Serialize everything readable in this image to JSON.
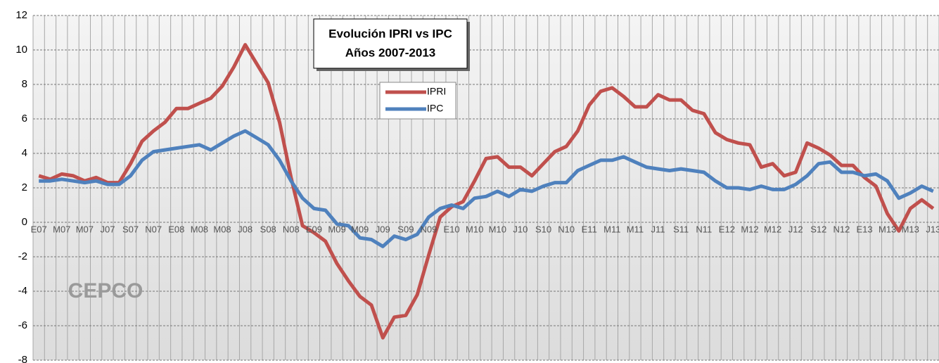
{
  "chart_data": {
    "type": "line",
    "title": "Evolución IPRI vs IPC",
    "subtitle": "Años 2007-2013",
    "logo": "CEPCO",
    "categories": [
      "E07",
      null,
      "M07",
      null,
      "M07",
      null,
      "J07",
      null,
      "S07",
      null,
      "N07",
      null,
      "E08",
      null,
      "M08",
      null,
      "M08",
      null,
      "J08",
      null,
      "S08",
      null,
      "N08",
      null,
      "E09",
      null,
      "M09",
      null,
      "M09",
      null,
      "J09",
      null,
      "S09",
      null,
      "N09",
      null,
      "E10",
      null,
      "M10",
      null,
      "M10",
      null,
      "J10",
      null,
      "S10",
      null,
      "N10",
      null,
      "E11",
      null,
      "M11",
      null,
      "M11",
      null,
      "J11",
      null,
      "S11",
      null,
      "N11",
      null,
      "E12",
      null,
      "M12",
      null,
      "M12",
      null,
      "J12",
      null,
      "S12",
      null,
      "N12",
      null,
      "E13",
      null,
      "M13",
      null,
      "M13",
      null,
      "J13"
    ],
    "series": [
      {
        "name": "IPRI",
        "color": "#c0504d",
        "values": [
          2.7,
          2.5,
          2.8,
          2.7,
          2.4,
          2.6,
          2.3,
          2.3,
          3.4,
          4.7,
          5.3,
          5.8,
          6.6,
          6.6,
          6.9,
          7.2,
          7.9,
          9.0,
          10.3,
          9.2,
          8.1,
          5.8,
          2.6,
          -0.2,
          -0.6,
          -1.1,
          -2.4,
          -3.4,
          -4.3,
          -4.8,
          -6.7,
          -5.5,
          -5.4,
          -4.2,
          -1.9,
          0.3,
          0.9,
          1.2,
          2.4,
          3.7,
          3.8,
          3.2,
          3.2,
          2.7,
          3.4,
          4.1,
          4.4,
          5.3,
          6.8,
          7.6,
          7.8,
          7.3,
          6.7,
          6.7,
          7.4,
          7.1,
          7.1,
          6.5,
          6.3,
          5.2,
          4.8,
          4.6,
          4.5,
          3.2,
          3.4,
          2.7,
          2.9,
          4.6,
          4.3,
          3.9,
          3.3,
          3.3,
          2.6,
          2.1,
          0.5,
          -0.5,
          0.8,
          1.3,
          0.8
        ]
      },
      {
        "name": "IPC",
        "color": "#4f81bd",
        "values": [
          2.4,
          2.4,
          2.5,
          2.4,
          2.3,
          2.4,
          2.2,
          2.2,
          2.7,
          3.6,
          4.1,
          4.2,
          4.3,
          4.4,
          4.5,
          4.2,
          4.6,
          5.0,
          5.3,
          4.9,
          4.5,
          3.6,
          2.4,
          1.4,
          0.8,
          0.7,
          -0.1,
          -0.2,
          -0.9,
          -1.0,
          -1.4,
          -0.8,
          -1.0,
          -0.7,
          0.3,
          0.8,
          1.0,
          0.8,
          1.4,
          1.5,
          1.8,
          1.5,
          1.9,
          1.8,
          2.1,
          2.3,
          2.3,
          3.0,
          3.3,
          3.6,
          3.6,
          3.8,
          3.5,
          3.2,
          3.1,
          3.0,
          3.1,
          3.0,
          2.9,
          2.4,
          2.0,
          2.0,
          1.9,
          2.1,
          1.9,
          1.9,
          2.2,
          2.7,
          3.4,
          3.5,
          2.9,
          2.9,
          2.7,
          2.8,
          2.4,
          1.4,
          1.7,
          2.1,
          1.8
        ]
      }
    ],
    "ylim": [
      -8,
      12
    ],
    "yticks": [
      -8,
      -6,
      -4,
      -2,
      0,
      2,
      4,
      6,
      8,
      10,
      12
    ],
    "grid": true
  }
}
